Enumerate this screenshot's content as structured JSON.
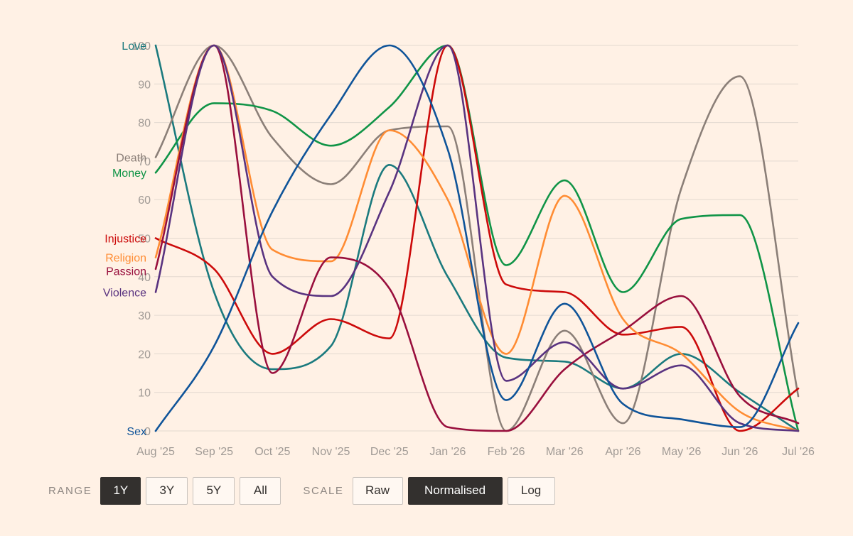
{
  "chart_data": {
    "type": "line",
    "x": [
      "Aug '25",
      "Sep '25",
      "Oct '25",
      "Nov '25",
      "Dec '25",
      "Jan '26",
      "Feb '26",
      "Mar '26",
      "Apr '26",
      "May '26",
      "Jun '26",
      "Jul '26"
    ],
    "y_ticks": [
      "0",
      "10",
      "20",
      "30",
      "40",
      "50",
      "60",
      "70",
      "80",
      "90",
      "100"
    ],
    "ylim": [
      0,
      100
    ],
    "grid": true,
    "legend": "inline-left",
    "series": [
      {
        "name": "Love",
        "color": "#1B7A7E",
        "values": [
          100,
          36,
          16,
          22,
          69,
          40,
          19,
          18,
          11,
          20,
          10,
          0
        ]
      },
      {
        "name": "Death",
        "color": "#8B7F78",
        "values": [
          71,
          100,
          76,
          64,
          78,
          79,
          0,
          26,
          2,
          63,
          92,
          9
        ]
      },
      {
        "name": "Money",
        "color": "#109447",
        "values": [
          67,
          85,
          83,
          74,
          84,
          100,
          43,
          65,
          36,
          55,
          56,
          0
        ]
      },
      {
        "name": "Injustice",
        "color": "#CC0A0A",
        "values": [
          50,
          42,
          20,
          29,
          24,
          100,
          38,
          36,
          25,
          27,
          0,
          11
        ]
      },
      {
        "name": "Religion",
        "color": "#FF8C33",
        "values": [
          45,
          100,
          47,
          44,
          78,
          60,
          20,
          61,
          29,
          20,
          5,
          0
        ]
      },
      {
        "name": "Passion",
        "color": "#990F3D",
        "values": [
          42,
          100,
          15,
          45,
          37,
          1,
          0,
          16,
          26,
          35,
          9,
          2
        ]
      },
      {
        "name": "Violence",
        "color": "#593380",
        "values": [
          36,
          100,
          40,
          35,
          62,
          100,
          13,
          23,
          11,
          17,
          2,
          0
        ]
      },
      {
        "name": "Sex",
        "color": "#0F5499",
        "values": [
          0,
          22,
          57,
          82,
          100,
          73,
          8,
          33,
          7,
          3,
          1,
          28
        ]
      }
    ]
  },
  "controls": {
    "range_label": "RANGE",
    "range_options": [
      "1Y",
      "3Y",
      "5Y",
      "All"
    ],
    "range_selected": "1Y",
    "scale_label": "SCALE",
    "scale_options": [
      "Raw",
      "Normalised",
      "Log"
    ],
    "scale_selected": "Normalised"
  }
}
